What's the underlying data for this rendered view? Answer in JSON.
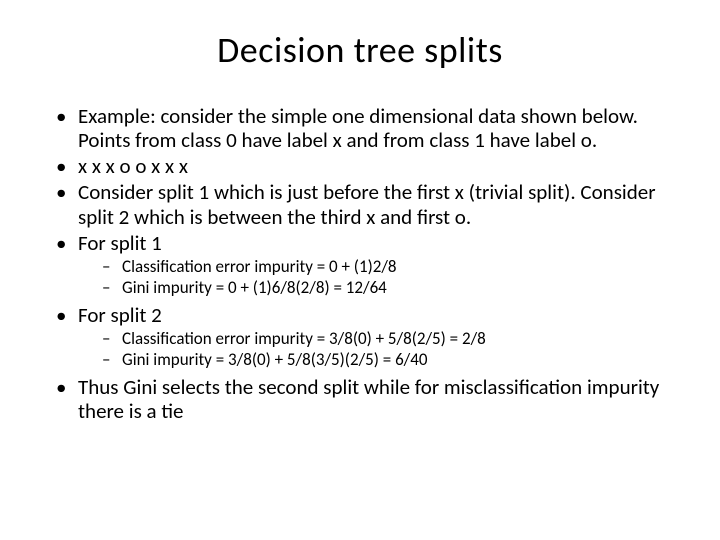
{
  "title": "Decision tree splits",
  "bullets": {
    "b1": "Example: consider the simple one dimensional data shown below. Points from class 0 have label x and from class 1 have label o.",
    "b2": "x x x o o x x x",
    "b3": "Consider split 1 which is just before the first x (trivial split). Consider split 2 which is between the third x and first o.",
    "b4": "For split 1",
    "b4_sub1": "Classification error impurity = 0 + (1)2/8",
    "b4_sub2": "Gini impurity = 0 + (1)6/8(2/8) = 12/64",
    "b5": "For split 2",
    "b5_sub1": "Classification error impurity = 3/8(0) + 5/8(2/5) = 2/8",
    "b5_sub2": "Gini impurity = 3/8(0) + 5/8(3/5)(2/5) = 6/40",
    "b6": "Thus Gini selects the second split while for misclassification impurity there is a tie"
  },
  "style": {
    "background_color": "#ffffff",
    "text_color": "#000000",
    "title_fontsize": 36,
    "body_fontsize": 21,
    "sub_fontsize": 17,
    "font_family": "Calibri"
  }
}
